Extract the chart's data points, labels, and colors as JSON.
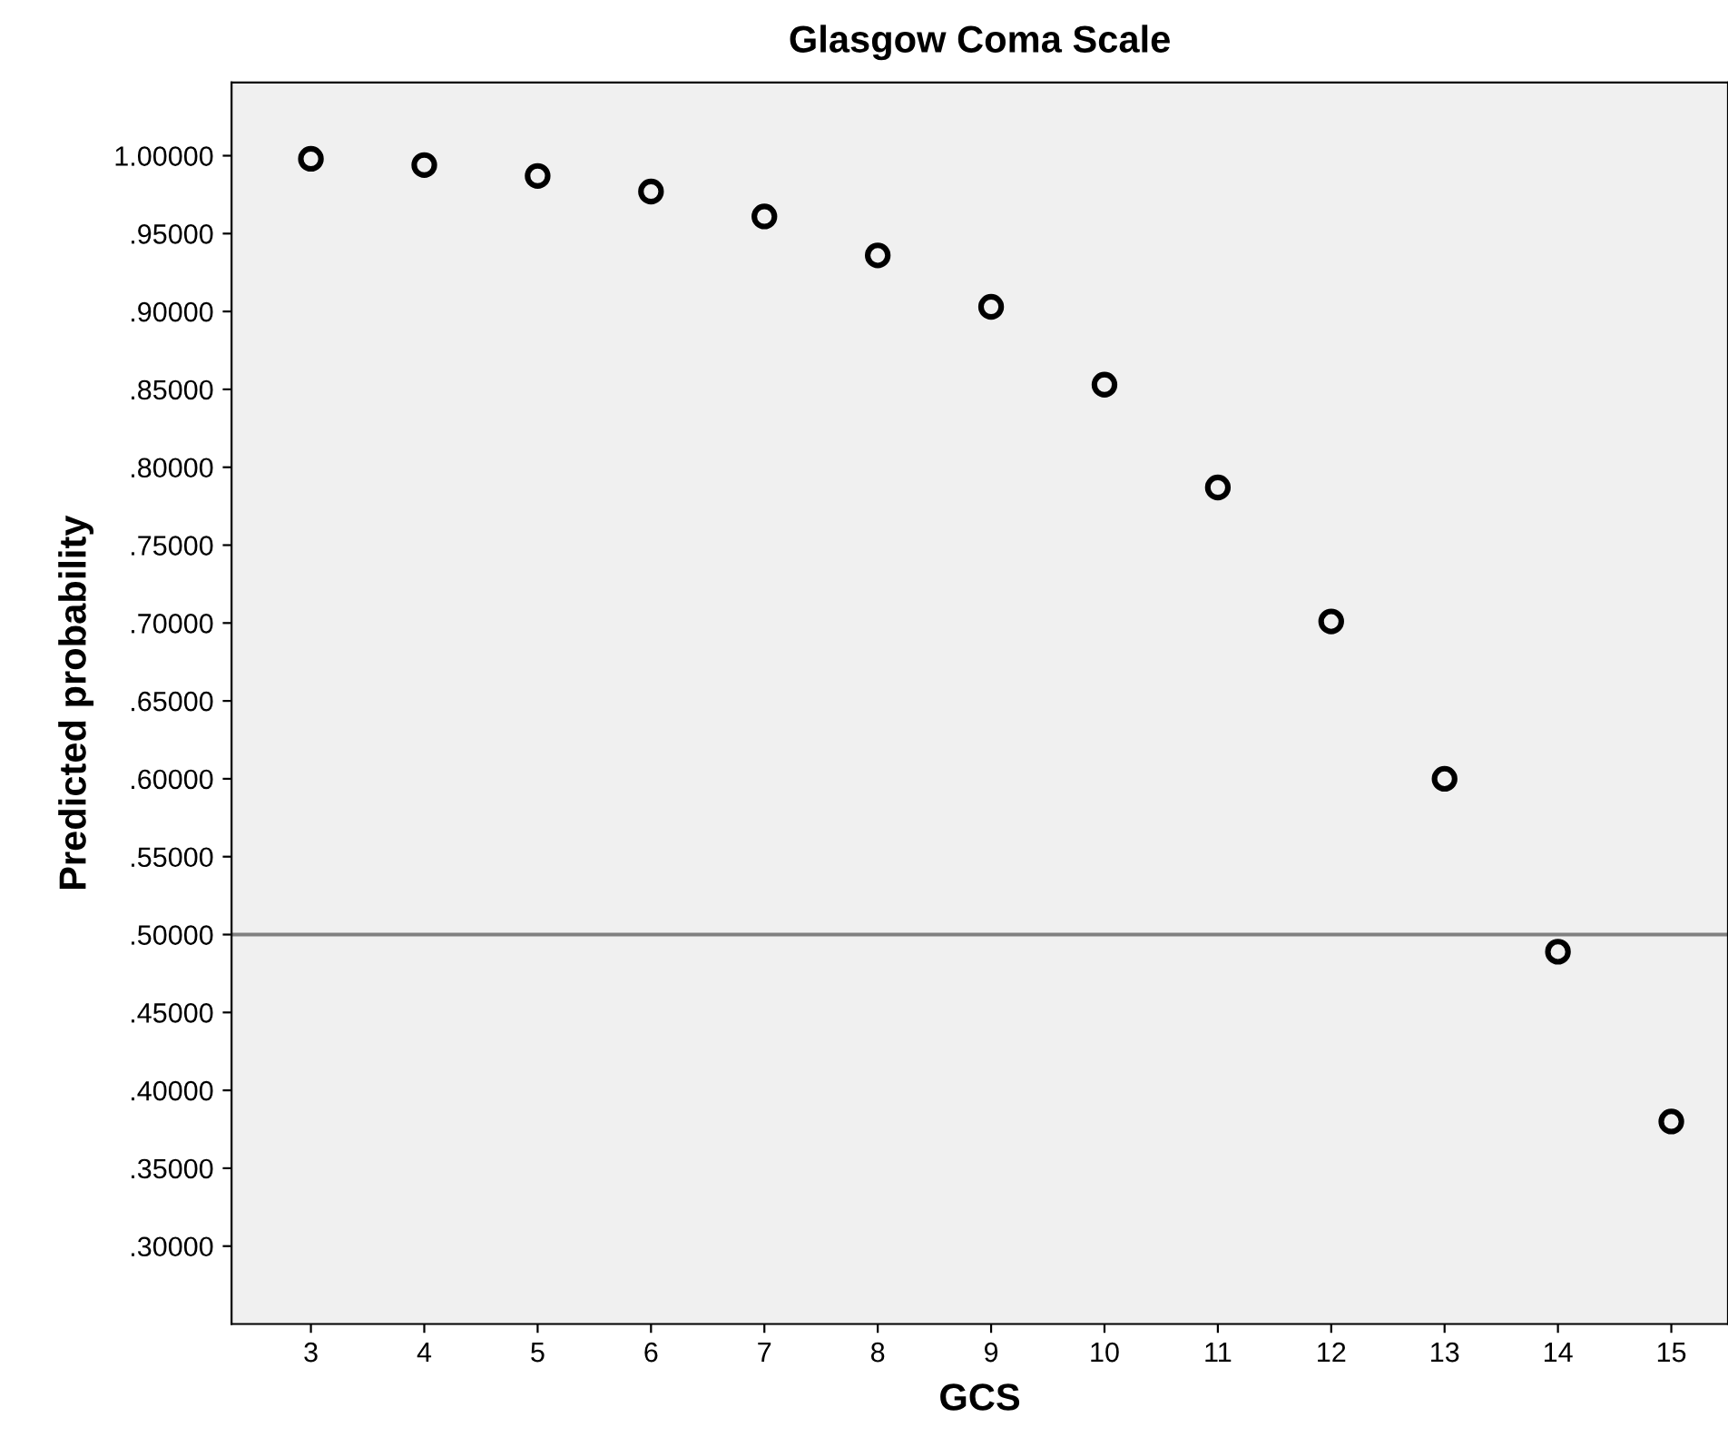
{
  "chart_data": {
    "type": "scatter",
    "title": "Glasgow Coma Scale",
    "xlabel": "GCS",
    "ylabel": "Predicted probability",
    "x": [
      3,
      4,
      5,
      6,
      7,
      8,
      9,
      10,
      11,
      12,
      13,
      14,
      15
    ],
    "values": [
      0.998,
      0.994,
      0.987,
      0.977,
      0.961,
      0.936,
      0.903,
      0.853,
      0.787,
      0.701,
      0.6,
      0.489,
      0.38
    ],
    "color": "#000000",
    "marker": "circle",
    "grid": false,
    "legend": false,
    "xlim": [
      2.3,
      15.5
    ],
    "ylim": [
      0.25,
      1.047
    ],
    "xticks": [
      3,
      4,
      5,
      6,
      7,
      8,
      9,
      10,
      11,
      12,
      13,
      14,
      15
    ],
    "yticks": [
      {
        "value": 0.3,
        "label": ".30000"
      },
      {
        "value": 0.35,
        "label": ".35000"
      },
      {
        "value": 0.4,
        "label": ".40000"
      },
      {
        "value": 0.45,
        "label": ".45000"
      },
      {
        "value": 0.5,
        "label": ".50000"
      },
      {
        "value": 0.55,
        "label": ".55000"
      },
      {
        "value": 0.6,
        "label": ".60000"
      },
      {
        "value": 0.65,
        "label": ".65000"
      },
      {
        "value": 0.7,
        "label": ".70000"
      },
      {
        "value": 0.75,
        "label": ".75000"
      },
      {
        "value": 0.8,
        "label": ".80000"
      },
      {
        "value": 0.85,
        "label": ".85000"
      },
      {
        "value": 0.9,
        "label": ".90000"
      },
      {
        "value": 0.95,
        "label": ".95000"
      },
      {
        "value": 1.0,
        "label": "1.00000"
      }
    ],
    "ref_lines": [
      {
        "axis": "y",
        "value": 0.5,
        "color": "#808080",
        "line_style": "solid"
      }
    ]
  }
}
